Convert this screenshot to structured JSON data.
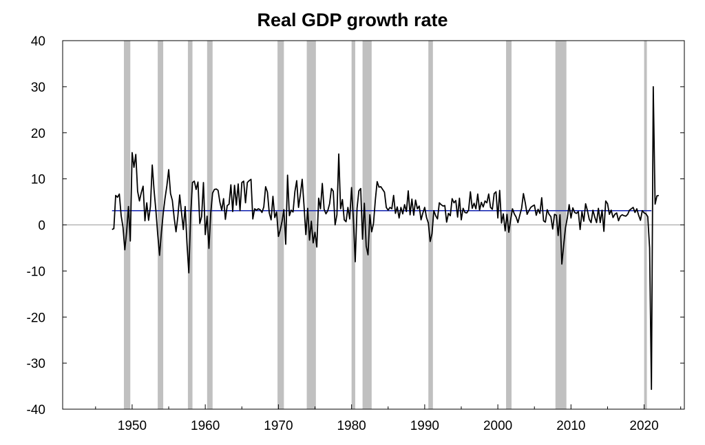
{
  "chart_data": {
    "type": "line",
    "title": "Real GDP growth rate",
    "xlabel": "",
    "ylabel": "",
    "xlim": [
      1940.5,
      2025.5
    ],
    "ylim": [
      -40,
      40
    ],
    "y_ticks": [
      40,
      30,
      20,
      10,
      0,
      -10,
      -20,
      -30,
      -40
    ],
    "x_ticks": [
      1950,
      1960,
      1970,
      1980,
      1990,
      2000,
      2010,
      2020
    ],
    "grid": false,
    "colors": {
      "growth_line": "#000000",
      "average_line": "#1f2fb5",
      "zero_line": "#9a9a9a",
      "recession_shading": "#c0c0c0"
    },
    "recessions": [
      [
        1948.875,
        1949.75
      ],
      [
        1953.5,
        1954.25
      ],
      [
        1957.625,
        1958.25
      ],
      [
        1960.25,
        1961.0
      ],
      [
        1969.875,
        1970.75
      ],
      [
        1973.875,
        1975.125
      ],
      [
        1980.0,
        1980.5
      ],
      [
        1981.5,
        1982.75
      ],
      [
        1990.5,
        1991.125
      ],
      [
        2001.125,
        2001.875
      ],
      [
        2007.875,
        2009.375
      ],
      [
        2020.0,
        2020.375
      ]
    ],
    "average": {
      "x": [
        1947.25,
        2021.0
      ],
      "y": 3.1
    },
    "series": [
      {
        "x_start": 1947.25,
        "step": 0.25,
        "values": [
          -1,
          -0.8,
          6.4,
          6,
          6.7,
          2,
          -0.5,
          -5.4,
          -1.4,
          4,
          -3.5,
          15.7,
          12.5,
          15.3,
          7.3,
          5.2,
          7,
          8.4,
          0.9,
          4.8,
          1,
          4,
          13,
          7.5,
          3.1,
          -2.1,
          -6.6,
          -1.6,
          2.5,
          5.8,
          8.5,
          12,
          6.8,
          5.3,
          1.5,
          -1.5,
          1.8,
          6.5,
          2.7,
          -1,
          4,
          -4.1,
          -10.4,
          2,
          9.2,
          9.5,
          7.7,
          9.3,
          0.3,
          1.8,
          9.2,
          -2.1,
          1.9,
          -5.1,
          2.6,
          6.9,
          7.7,
          7.8,
          7.5,
          4.9,
          3.2,
          5.7,
          1.2,
          4.2,
          4.5,
          8.7,
          2.9,
          8.6,
          4.3,
          8.9,
          3.1,
          9.2,
          9.5,
          4.8,
          9.2,
          9.6,
          9.9,
          1.3,
          3.5,
          3.2,
          3.5,
          3.3,
          2.7,
          3.9,
          8.3,
          7.1,
          2.6,
          1.1,
          6.2,
          1.6,
          2.8,
          -2.5,
          -1.1,
          0.8,
          3.3,
          -4.2,
          10.8,
          2,
          3.2,
          2.8,
          7.2,
          9.6,
          3.8,
          6.6,
          9.9,
          4.2,
          -2.1,
          3.6,
          -3.3,
          0.8,
          -3.9,
          -1.6,
          -4.8,
          5.8,
          3.5,
          9,
          3.4,
          2.4,
          3.1,
          4.6,
          7.9,
          7.3,
          0,
          2.2,
          15.4,
          3.5,
          5.5,
          1.1,
          0.7,
          3.8,
          1.3,
          8.1,
          1.3,
          -8,
          3.6,
          7.4,
          7.9,
          -3.1,
          4.7,
          -4.6,
          -6.5,
          2.2,
          -1.5,
          0.3,
          5.4,
          9.4,
          8.2,
          8.3,
          7.7,
          7.1,
          3.8,
          3.2,
          3.8,
          3.5,
          6.4,
          2.5,
          3.9,
          1.5,
          3.8,
          2.4,
          4.4,
          2.9,
          7.4,
          2.2,
          5.6,
          2.1,
          5.4,
          3.5,
          4.1,
          1.1,
          2.6,
          3.8,
          1.6,
          0.4,
          -3.6,
          -1.9,
          3.1,
          2,
          1.3,
          4.8,
          4.4,
          4.1,
          4.2,
          0.6,
          2.5,
          2,
          5.7,
          4.8,
          5.3,
          1.7,
          5.8,
          1.1,
          3.6,
          2.7,
          2.6,
          3.2,
          7.2,
          3.6,
          4.7,
          3.5,
          6.7,
          3.2,
          4.9,
          3.9,
          5.2,
          4.8,
          6.7,
          3.8,
          3.4,
          6.8,
          7.2,
          1.5,
          7.5,
          0.4,
          2.4,
          -1.3,
          2.3,
          -1.6,
          1.1,
          3.5,
          2.4,
          1.7,
          0.5,
          2.1,
          3.6,
          6.8,
          4.8,
          2.3,
          3.1,
          3.8,
          4.1,
          4.3,
          2.1,
          3.4,
          2.5,
          5.9,
          0.9,
          0.6,
          3.3,
          2.3,
          1.8,
          -0.9,
          2.3,
          2.1,
          -2.3,
          2.2,
          -8.5,
          -4.4,
          -0.6,
          1.5,
          4.4,
          1.5,
          3.7,
          2.7,
          2.5,
          2.9,
          -1,
          2.9,
          0.8,
          4.6,
          3.1,
          1.2,
          0.5,
          3.2,
          1.7,
          0.5,
          3.6,
          0.5,
          3.2,
          -1.4,
          5.2,
          4.6,
          2.3,
          3.2,
          1.6,
          2.3,
          2.6,
          0.9,
          1.9,
          2.2,
          2,
          1.9,
          2.3,
          3.2,
          3.5,
          3.8,
          2.7,
          3.5,
          2.1,
          1,
          3.1,
          2.6,
          2.4,
          1.8,
          -5,
          -35.7,
          30,
          4.5,
          6.3,
          6.4
        ]
      }
    ]
  }
}
